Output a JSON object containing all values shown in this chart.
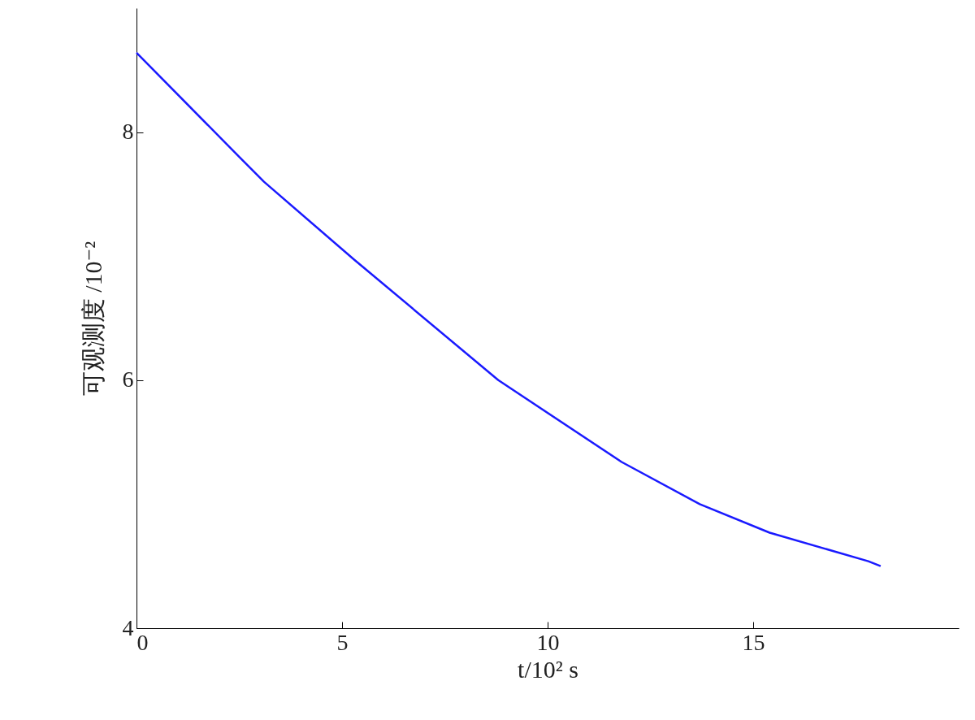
{
  "chart_data": {
    "type": "line",
    "xlabel": "t/10² s",
    "ylabel": "可观测度 /10⁻²",
    "x": [
      0,
      2.5,
      3.1,
      5.3,
      8.8,
      11.8,
      13.7,
      15.4,
      17.8,
      18.1
    ],
    "series": [
      {
        "color": "#1a1aff",
        "values": [
          8.64,
          7.8,
          7.6,
          6.97,
          6.0,
          5.34,
          5.0,
          4.77,
          4.54,
          4.5
        ]
      }
    ],
    "xlim": [
      0,
      20
    ],
    "xticks": [
      0,
      5,
      10,
      15
    ],
    "ylim": [
      4,
      9
    ],
    "yticks": [
      4,
      6,
      8
    ],
    "grid": false,
    "marker": "none",
    "line_style": "solid"
  }
}
